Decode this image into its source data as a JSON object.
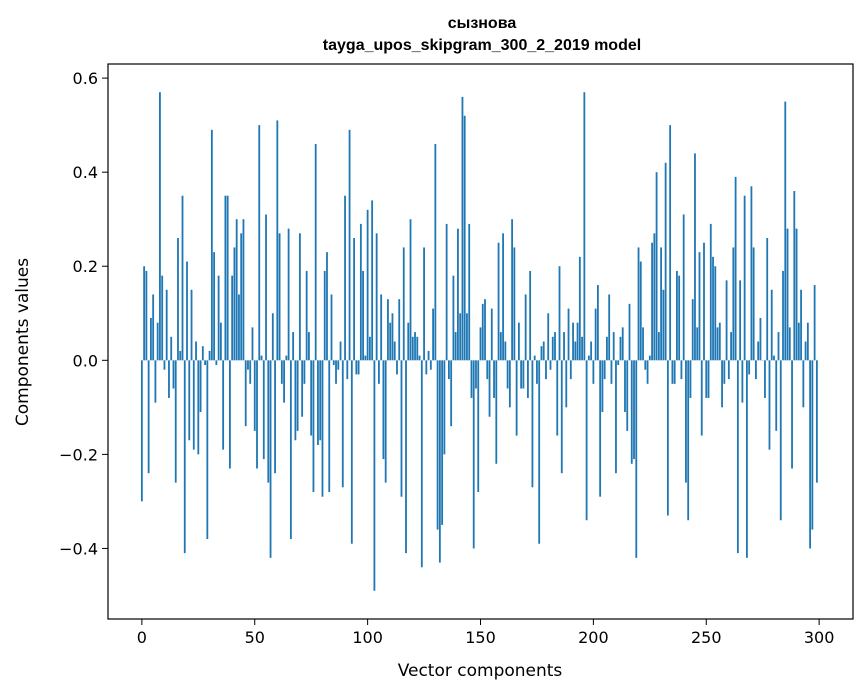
{
  "chart_data": {
    "type": "bar",
    "title": "сызнова",
    "subtitle": "tayga_upos_skipgram_300_2_2019 model",
    "xlabel": "Vector components",
    "ylabel": "Components values",
    "xlim": [
      -15,
      315
    ],
    "ylim": [
      -0.55,
      0.63
    ],
    "xticks": [
      0,
      50,
      100,
      150,
      200,
      250,
      300
    ],
    "xtick_labels": [
      "0",
      "50",
      "100",
      "150",
      "200",
      "250",
      "300"
    ],
    "yticks": [
      -0.4,
      -0.2,
      0.0,
      0.2,
      0.4,
      0.6
    ],
    "ytick_labels": [
      "−0.4",
      "−0.2",
      "0.0",
      "0.2",
      "0.4",
      "0.6"
    ],
    "bar_color": "#1f77b4",
    "grid": false,
    "x": [
      0,
      1,
      2,
      3,
      4,
      5,
      6,
      7,
      8,
      9,
      10,
      11,
      12,
      13,
      14,
      15,
      16,
      17,
      18,
      19,
      20,
      21,
      22,
      23,
      24,
      25,
      26,
      27,
      28,
      29,
      30,
      31,
      32,
      33,
      34,
      35,
      36,
      37,
      38,
      39,
      40,
      41,
      42,
      43,
      44,
      45,
      46,
      47,
      48,
      49,
      50,
      51,
      52,
      53,
      54,
      55,
      56,
      57,
      58,
      59,
      60,
      61,
      62,
      63,
      64,
      65,
      66,
      67,
      68,
      69,
      70,
      71,
      72,
      73,
      74,
      75,
      76,
      77,
      78,
      79,
      80,
      81,
      82,
      83,
      84,
      85,
      86,
      87,
      88,
      89,
      90,
      91,
      92,
      93,
      94,
      95,
      96,
      97,
      98,
      99,
      100,
      101,
      102,
      103,
      104,
      105,
      106,
      107,
      108,
      109,
      110,
      111,
      112,
      113,
      114,
      115,
      116,
      117,
      118,
      119,
      120,
      121,
      122,
      123,
      124,
      125,
      126,
      127,
      128,
      129,
      130,
      131,
      132,
      133,
      134,
      135,
      136,
      137,
      138,
      139,
      140,
      141,
      142,
      143,
      144,
      145,
      146,
      147,
      148,
      149,
      150,
      151,
      152,
      153,
      154,
      155,
      156,
      157,
      158,
      159,
      160,
      161,
      162,
      163,
      164,
      165,
      166,
      167,
      168,
      169,
      170,
      171,
      172,
      173,
      174,
      175,
      176,
      177,
      178,
      179,
      180,
      181,
      182,
      183,
      184,
      185,
      186,
      187,
      188,
      189,
      190,
      191,
      192,
      193,
      194,
      195,
      196,
      197,
      198,
      199,
      200,
      201,
      202,
      203,
      204,
      205,
      206,
      207,
      208,
      209,
      210,
      211,
      212,
      213,
      214,
      215,
      216,
      217,
      218,
      219,
      220,
      221,
      222,
      223,
      224,
      225,
      226,
      227,
      228,
      229,
      230,
      231,
      232,
      233,
      234,
      235,
      236,
      237,
      238,
      239,
      240,
      241,
      242,
      243,
      244,
      245,
      246,
      247,
      248,
      249,
      250,
      251,
      252,
      253,
      254,
      255,
      256,
      257,
      258,
      259,
      260,
      261,
      262,
      263,
      264,
      265,
      266,
      267,
      268,
      269,
      270,
      271,
      272,
      273,
      274,
      275,
      276,
      277,
      278,
      279,
      280,
      281,
      282,
      283,
      284,
      285,
      286,
      287,
      288,
      289,
      290,
      291,
      292,
      293,
      294,
      295,
      296,
      297,
      298,
      299
    ],
    "values": [
      -0.3,
      0.2,
      0.19,
      -0.24,
      0.09,
      0.14,
      -0.09,
      0.08,
      0.57,
      0.18,
      -0.02,
      0.15,
      -0.08,
      0.05,
      -0.06,
      -0.26,
      0.26,
      0.02,
      0.35,
      -0.41,
      0.21,
      -0.17,
      0.15,
      -0.19,
      0.04,
      -0.2,
      -0.11,
      0.03,
      -0.01,
      -0.38,
      0.02,
      0.49,
      0.23,
      -0.01,
      0.18,
      0.08,
      -0.19,
      0.35,
      0.35,
      -0.23,
      0.18,
      0.24,
      0.3,
      0.14,
      0.27,
      0.3,
      -0.14,
      -0.02,
      -0.05,
      0.07,
      -0.15,
      -0.23,
      0.5,
      0.01,
      -0.21,
      0.31,
      -0.26,
      -0.42,
      0.1,
      -0.24,
      0.51,
      0.27,
      -0.05,
      -0.09,
      0.01,
      0.28,
      -0.38,
      0.06,
      -0.17,
      -0.15,
      0.27,
      -0.12,
      -0.05,
      0.19,
      0.06,
      -0.16,
      -0.28,
      0.46,
      -0.18,
      -0.17,
      -0.29,
      0.19,
      0.23,
      -0.28,
      0.14,
      -0.01,
      -0.05,
      -0.02,
      0.04,
      -0.27,
      0.35,
      -0.04,
      0.49,
      -0.39,
      0.26,
      -0.03,
      -0.03,
      0.29,
      0.19,
      0.01,
      0.32,
      0.05,
      0.34,
      -0.49,
      0.27,
      -0.05,
      0.14,
      -0.21,
      -0.26,
      0.13,
      0.08,
      0.1,
      0.04,
      -0.03,
      0.13,
      -0.29,
      0.24,
      -0.41,
      0.08,
      0.3,
      0.05,
      0.06,
      0.05,
      0.01,
      -0.44,
      0.24,
      -0.03,
      0.02,
      -0.02,
      0.11,
      0.46,
      -0.36,
      -0.43,
      -0.35,
      -0.2,
      0.29,
      -0.04,
      -0.14,
      0.18,
      0.06,
      0.28,
      0.1,
      0.56,
      0.52,
      0.1,
      0.29,
      -0.08,
      -0.4,
      -0.06,
      -0.28,
      0.07,
      0.12,
      0.13,
      -0.04,
      -0.12,
      0.11,
      -0.08,
      -0.22,
      0.25,
      0.06,
      0.27,
      0.04,
      -0.06,
      -0.1,
      0.3,
      0.24,
      -0.16,
      0.08,
      -0.06,
      -0.06,
      0.14,
      -0.08,
      0.19,
      -0.27,
      0.01,
      -0.05,
      -0.39,
      0.03,
      0.04,
      -0.04,
      0.1,
      -0.02,
      0.05,
      0.06,
      -0.16,
      0.2,
      -0.24,
      0.06,
      -0.1,
      0.11,
      -0.04,
      0.08,
      0.04,
      0.08,
      0.22,
      0.05,
      0.57,
      -0.34,
      0.01,
      0.04,
      -0.05,
      0.11,
      0.16,
      -0.29,
      -0.11,
      -0.04,
      0.05,
      0.14,
      -0.05,
      0.06,
      -0.24,
      -0.01,
      0.05,
      0.07,
      -0.11,
      -0.15,
      0.12,
      -0.22,
      -0.21,
      -0.42,
      0.24,
      0.21,
      0.07,
      -0.02,
      -0.05,
      0.01,
      0.25,
      0.27,
      0.4,
      0.06,
      0.24,
      0.15,
      0.42,
      -0.33,
      0.5,
      -0.05,
      -0.05,
      0.19,
      0.18,
      -0.04,
      0.31,
      -0.26,
      -0.34,
      -0.08,
      0.13,
      0.44,
      0.07,
      0.23,
      -0.16,
      0.25,
      -0.08,
      -0.08,
      0.29,
      0.22,
      0.2,
      0.07,
      0.08,
      -0.1,
      -0.05,
      0.17,
      -0.04,
      0.06,
      0.24,
      0.39,
      -0.41,
      0.17,
      -0.09,
      0.35,
      -0.42,
      -0.03,
      0.37,
      0.24,
      -0.04,
      0.04,
      0.09,
      0.0,
      -0.08,
      0.26,
      -0.19,
      0.15,
      0.01,
      -0.15,
      0.06,
      -0.34,
      0.19,
      0.55,
      0.28,
      0.07,
      -0.23,
      0.36,
      0.28,
      0.08,
      0.15,
      -0.1,
      0.04,
      0.08,
      -0.4,
      -0.36,
      0.16,
      -0.26
    ]
  }
}
